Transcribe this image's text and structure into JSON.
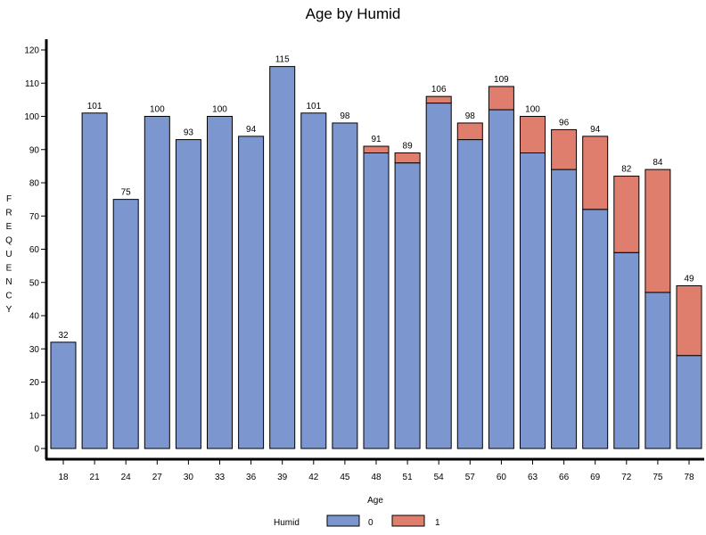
{
  "chart_data": {
    "type": "bar",
    "stacked": true,
    "title": "Age by Humid",
    "xlabel": "Age",
    "ylabel": "FREQUENCY",
    "ylim": [
      0,
      120
    ],
    "yticks": [
      0,
      10,
      20,
      30,
      40,
      50,
      60,
      70,
      80,
      90,
      100,
      110,
      120
    ],
    "categories": [
      "18",
      "21",
      "24",
      "27",
      "30",
      "33",
      "36",
      "39",
      "42",
      "45",
      "48",
      "51",
      "54",
      "57",
      "60",
      "63",
      "66",
      "69",
      "72",
      "75",
      "78"
    ],
    "legend_title": "Humid",
    "legend_position": "bottom",
    "series": [
      {
        "name": "0",
        "color": "#7c97d0",
        "values": [
          32,
          101,
          75,
          100,
          93,
          100,
          94,
          115,
          101,
          98,
          89,
          86,
          104,
          93,
          102,
          89,
          84,
          72,
          59,
          47,
          28
        ]
      },
      {
        "name": "1",
        "color": "#e07e6e",
        "values": [
          0,
          0,
          0,
          0,
          0,
          0,
          0,
          0,
          0,
          0,
          2,
          3,
          2,
          5,
          7,
          11,
          12,
          22,
          23,
          37,
          21
        ]
      }
    ],
    "totals": [
      "32",
      "101",
      "75",
      "100",
      "93",
      "100",
      "94",
      "115",
      "101",
      "98",
      "91",
      "89",
      "106",
      "98",
      "109",
      "100",
      "96",
      "94",
      "82",
      "84",
      "49"
    ]
  }
}
